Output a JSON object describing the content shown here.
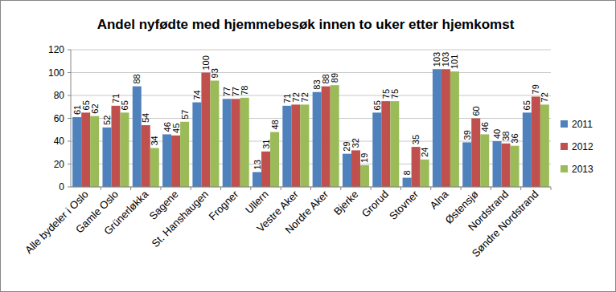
{
  "chart_data": {
    "type": "bar",
    "title": "Andel nyfødte med hjemmebesøk innen to uker etter hjemkomst",
    "categories": [
      "Alle bydeler i Oslo",
      "Gamle Oslo",
      "Grünerløkka",
      "Sagene",
      "St. Hanshaugen",
      "Frogner",
      "Ullern",
      "Vestre Aker",
      "Nordre Aker",
      "Bjerke",
      "Grorud",
      "Stovner",
      "Alna",
      "Østensjø",
      "Nordstrand",
      "Søndre Nordstrand"
    ],
    "series": [
      {
        "name": "2011",
        "color": "#4f81bd",
        "values": [
          61,
          52,
          88,
          46,
          74,
          77,
          13,
          71,
          83,
          29,
          65,
          8,
          103,
          39,
          40,
          65
        ]
      },
      {
        "name": "2012",
        "color": "#c0504d",
        "values": [
          65,
          71,
          54,
          45,
          100,
          77,
          31,
          72,
          88,
          32,
          75,
          35,
          103,
          60,
          38,
          79
        ]
      },
      {
        "name": "2013",
        "color": "#9bbb59",
        "values": [
          62,
          65,
          34,
          57,
          93,
          78,
          48,
          72,
          89,
          19,
          75,
          24,
          101,
          46,
          36,
          72
        ]
      }
    ],
    "ylim": [
      0,
      120
    ],
    "yticks": [
      0,
      20,
      40,
      60,
      80,
      100,
      120
    ],
    "grid": true,
    "legend": "right",
    "data_labels": true
  }
}
